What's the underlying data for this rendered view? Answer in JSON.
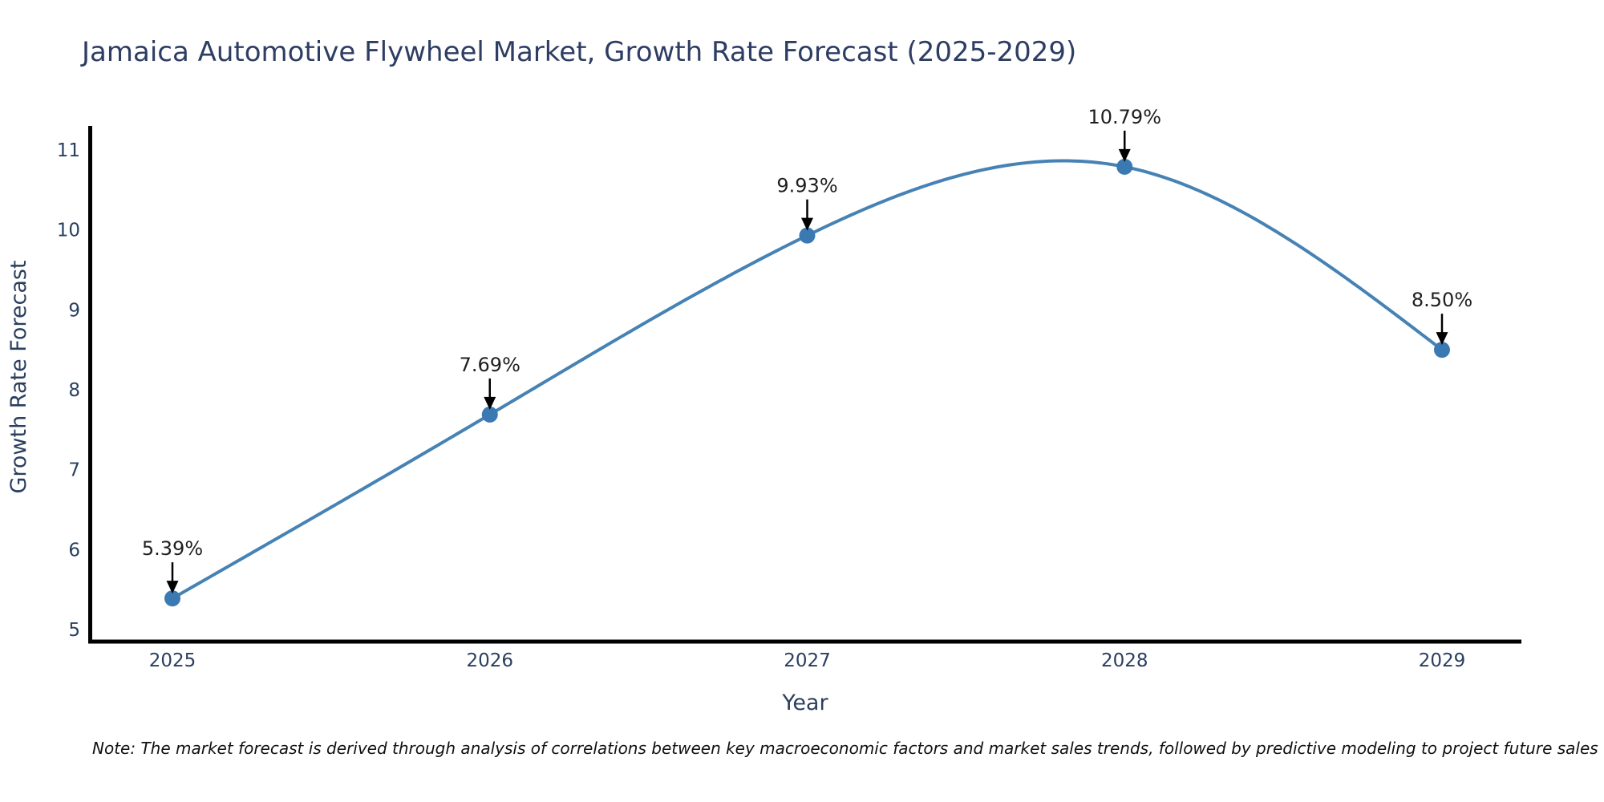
{
  "title": "Jamaica Automotive Flywheel Market, Growth Rate Forecast (2025-2029)",
  "note": "Note: The market forecast is derived through analysis of correlations between key macroeconomic factors and market sales trends, followed by predictive modeling to project future sales",
  "chart_data": {
    "type": "line",
    "title": "Jamaica Automotive Flywheel Market, Growth Rate Forecast (2025-2029)",
    "xlabel": "Year",
    "ylabel": "Growth Rate Forecast",
    "categories": [
      "2025",
      "2026",
      "2027",
      "2028",
      "2029"
    ],
    "x": [
      2025,
      2026,
      2027,
      2028,
      2029
    ],
    "values": [
      5.39,
      7.69,
      9.93,
      10.79,
      8.5
    ],
    "point_labels": [
      "5.39%",
      "7.69%",
      "9.93%",
      "10.79%",
      "8.50%"
    ],
    "yticks": [
      5,
      6,
      7,
      8,
      9,
      10,
      11
    ],
    "ylim": [
      5,
      11
    ],
    "grid": false,
    "legend": "none",
    "line_style": "smooth-spline",
    "marker": "circle",
    "annotation_arrows": "down",
    "colors": {
      "line": "#4682b4",
      "marker": "#3b79b3",
      "axis": "#000000",
      "tick_text": "#2a3f5f",
      "title_text": "#2e3d63",
      "annotation_text": "#1f1f1f",
      "arrow": "#000000",
      "note_text": "#111111"
    }
  }
}
